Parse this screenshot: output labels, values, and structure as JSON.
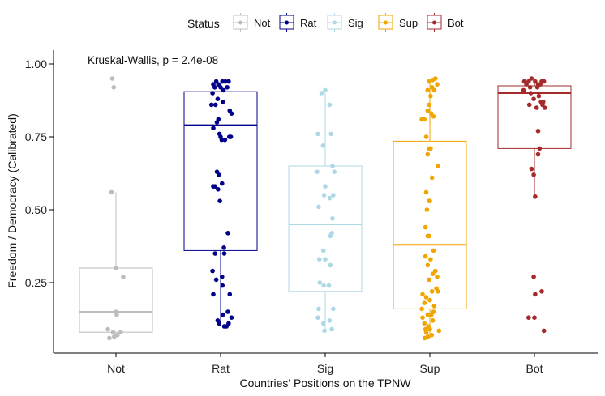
{
  "chart_data": {
    "type": "boxplot",
    "xlabel": "Countries' Positions on the TPNW",
    "ylabel": "Freedom / Democracy (Calibrated)",
    "ylim": [
      0.03,
      1.05
    ],
    "yticks": [
      0.25,
      0.5,
      0.75,
      1.0
    ],
    "ytick_labels": [
      "0.25",
      "0.50",
      "0.75",
      "1.00"
    ],
    "categories": [
      "Not",
      "Rat",
      "Sig",
      "Sup",
      "Bot"
    ],
    "annotation": "Kruskal-Wallis, p = 2.4e-08",
    "legend": {
      "title": "Status",
      "position": "top",
      "entries": [
        "Not",
        "Rat",
        "Sig",
        "Sup",
        "Bot"
      ]
    },
    "series": [
      {
        "name": "Not",
        "color": "#bdbdbd",
        "box": {
          "min": 0.06,
          "q1": 0.08,
          "median": 0.15,
          "q3": 0.3,
          "max": 0.56
        },
        "points": [
          [
            -0.1,
            0.95
          ],
          [
            -0.06,
            0.92
          ],
          [
            -0.12,
            0.56
          ],
          [
            -0.01,
            0.3
          ],
          [
            0.2,
            0.27
          ],
          [
            0.0,
            0.15
          ],
          [
            0.02,
            0.14
          ],
          [
            -0.22,
            0.09
          ],
          [
            -0.08,
            0.08
          ],
          [
            0.13,
            0.08
          ],
          [
            0.04,
            0.07
          ],
          [
            -0.18,
            0.06
          ],
          [
            -0.05,
            0.065
          ]
        ]
      },
      {
        "name": "Rat",
        "color": "#00008b",
        "box": {
          "min": 0.1,
          "q1": 0.36,
          "median": 0.79,
          "q3": 0.905,
          "max": 0.905
        },
        "points": [
          [
            -0.2,
            0.93
          ],
          [
            -0.12,
            0.94
          ],
          [
            -0.06,
            0.93
          ],
          [
            0.05,
            0.94
          ],
          [
            0.13,
            0.94
          ],
          [
            0.22,
            0.94
          ],
          [
            -0.16,
            0.92
          ],
          [
            0.0,
            0.92
          ],
          [
            0.18,
            0.92
          ],
          [
            -0.22,
            0.9
          ],
          [
            0.08,
            0.91
          ],
          [
            -0.08,
            0.88
          ],
          [
            0.06,
            0.87
          ],
          [
            -0.25,
            0.86
          ],
          [
            -0.14,
            0.86
          ],
          [
            0.25,
            0.84
          ],
          [
            0.3,
            0.83
          ],
          [
            0.28,
            0.75
          ],
          [
            0.24,
            0.75
          ],
          [
            -0.06,
            0.81
          ],
          [
            -0.1,
            0.8
          ],
          [
            -0.2,
            0.78
          ],
          [
            -0.03,
            0.76
          ],
          [
            0.0,
            0.75
          ],
          [
            0.03,
            0.74
          ],
          [
            0.12,
            0.74
          ],
          [
            -0.1,
            0.63
          ],
          [
            -0.05,
            0.62
          ],
          [
            0.04,
            0.59
          ],
          [
            -0.2,
            0.58
          ],
          [
            -0.15,
            0.58
          ],
          [
            -0.07,
            0.57
          ],
          [
            -0.02,
            0.53
          ],
          [
            0.2,
            0.42
          ],
          [
            0.09,
            0.37
          ],
          [
            -0.15,
            0.35
          ],
          [
            0.1,
            0.35
          ],
          [
            -0.22,
            0.29
          ],
          [
            0.04,
            0.27
          ],
          [
            -0.12,
            0.26
          ],
          [
            0.05,
            0.24
          ],
          [
            -0.2,
            0.21
          ],
          [
            0.25,
            0.21
          ],
          [
            0.2,
            0.15
          ],
          [
            0.06,
            0.14
          ],
          [
            0.3,
            0.13
          ],
          [
            0.22,
            0.11
          ],
          [
            -0.08,
            0.12
          ],
          [
            -0.04,
            0.11
          ],
          [
            0.1,
            0.1
          ],
          [
            0.16,
            0.1
          ]
        ]
      },
      {
        "name": "Sig",
        "color": "#add8e6",
        "box": {
          "min": 0.08,
          "q1": 0.22,
          "median": 0.45,
          "q3": 0.65,
          "max": 0.9
        },
        "points": [
          [
            -0.1,
            0.9
          ],
          [
            0.0,
            0.91
          ],
          [
            0.12,
            0.86
          ],
          [
            -0.2,
            0.76
          ],
          [
            -0.06,
            0.72
          ],
          [
            0.16,
            0.76
          ],
          [
            -0.22,
            0.63
          ],
          [
            0.2,
            0.65
          ],
          [
            0.25,
            0.63
          ],
          [
            -0.03,
            0.55
          ],
          [
            0.0,
            0.58
          ],
          [
            0.12,
            0.54
          ],
          [
            -0.18,
            0.51
          ],
          [
            0.22,
            0.55
          ],
          [
            0.2,
            0.47
          ],
          [
            0.18,
            0.42
          ],
          [
            0.14,
            0.41
          ],
          [
            -0.05,
            0.36
          ],
          [
            -0.16,
            0.33
          ],
          [
            0.0,
            0.33
          ],
          [
            0.14,
            0.31
          ],
          [
            -0.15,
            0.25
          ],
          [
            -0.04,
            0.24
          ],
          [
            0.1,
            0.24
          ],
          [
            -0.18,
            0.16
          ],
          [
            0.22,
            0.16
          ],
          [
            -0.2,
            0.13
          ],
          [
            -0.05,
            0.11
          ],
          [
            0.12,
            0.12
          ],
          [
            -0.02,
            0.085
          ],
          [
            0.18,
            0.09
          ]
        ]
      },
      {
        "name": "Sup",
        "color": "#f0a500",
        "box": {
          "min": 0.06,
          "q1": 0.16,
          "median": 0.38,
          "q3": 0.735,
          "max": 0.945
        },
        "points": [
          [
            0.08,
            0.945
          ],
          [
            0.15,
            0.95
          ],
          [
            -0.02,
            0.94
          ],
          [
            0.2,
            0.93
          ],
          [
            0.06,
            0.92
          ],
          [
            -0.06,
            0.91
          ],
          [
            0.12,
            0.91
          ],
          [
            0.02,
            0.89
          ],
          [
            -0.02,
            0.86
          ],
          [
            -0.06,
            0.84
          ],
          [
            0.04,
            0.83
          ],
          [
            0.1,
            0.82
          ],
          [
            -0.15,
            0.81
          ],
          [
            -0.22,
            0.81
          ],
          [
            -0.1,
            0.75
          ],
          [
            -0.02,
            0.71
          ],
          [
            0.02,
            0.71
          ],
          [
            -0.06,
            0.69
          ],
          [
            0.22,
            0.65
          ],
          [
            0.06,
            0.61
          ],
          [
            -0.1,
            0.56
          ],
          [
            -0.02,
            0.53
          ],
          [
            0.0,
            0.53
          ],
          [
            -0.08,
            0.5
          ],
          [
            -0.12,
            0.44
          ],
          [
            -0.06,
            0.41
          ],
          [
            -0.02,
            0.41
          ],
          [
            0.1,
            0.36
          ],
          [
            -0.12,
            0.34
          ],
          [
            0.02,
            0.33
          ],
          [
            -0.06,
            0.31
          ],
          [
            0.15,
            0.29
          ],
          [
            0.08,
            0.28
          ],
          [
            -0.02,
            0.26
          ],
          [
            0.2,
            0.27
          ],
          [
            0.18,
            0.23
          ],
          [
            0.22,
            0.22
          ],
          [
            0.06,
            0.22
          ],
          [
            -0.2,
            0.21
          ],
          [
            -0.1,
            0.2
          ],
          [
            0.0,
            0.19
          ],
          [
            -0.15,
            0.18
          ],
          [
            0.12,
            0.17
          ],
          [
            -0.22,
            0.16
          ],
          [
            0.1,
            0.15
          ],
          [
            -0.06,
            0.14
          ],
          [
            0.04,
            0.14
          ],
          [
            -0.2,
            0.13
          ],
          [
            0.08,
            0.12
          ],
          [
            -0.15,
            0.11
          ],
          [
            -0.04,
            0.1
          ],
          [
            -0.12,
            0.09
          ],
          [
            0.0,
            0.09
          ],
          [
            0.25,
            0.085
          ],
          [
            -0.1,
            0.08
          ],
          [
            0.05,
            0.07
          ],
          [
            -0.14,
            0.06
          ],
          [
            -0.06,
            0.065
          ]
        ]
      },
      {
        "name": "Bot",
        "color": "#a52a2a",
        "box": {
          "min": 0.545,
          "q1": 0.71,
          "median": 0.9,
          "q3": 0.925,
          "max": 0.95
        },
        "points": [
          [
            -0.28,
            0.94
          ],
          [
            -0.16,
            0.94
          ],
          [
            -0.08,
            0.95
          ],
          [
            0.02,
            0.94
          ],
          [
            0.1,
            0.93
          ],
          [
            0.2,
            0.94
          ],
          [
            -0.22,
            0.93
          ],
          [
            0.16,
            0.93
          ],
          [
            0.26,
            0.94
          ],
          [
            -0.12,
            0.92
          ],
          [
            0.08,
            0.92
          ],
          [
            -0.3,
            0.91
          ],
          [
            -0.1,
            0.9
          ],
          [
            0.12,
            0.89
          ],
          [
            -0.02,
            0.88
          ],
          [
            0.24,
            0.87
          ],
          [
            0.18,
            0.87
          ],
          [
            -0.14,
            0.86
          ],
          [
            0.22,
            0.86
          ],
          [
            0.06,
            0.85
          ],
          [
            0.28,
            0.85
          ],
          [
            0.1,
            0.77
          ],
          [
            0.14,
            0.71
          ],
          [
            0.1,
            0.69
          ],
          [
            -0.08,
            0.64
          ],
          [
            -0.02,
            0.62
          ],
          [
            0.02,
            0.545
          ],
          [
            -0.02,
            0.27
          ],
          [
            0.2,
            0.22
          ],
          [
            0.02,
            0.21
          ],
          [
            -0.16,
            0.13
          ],
          [
            0.0,
            0.13
          ],
          [
            0.26,
            0.085
          ]
        ]
      }
    ]
  }
}
